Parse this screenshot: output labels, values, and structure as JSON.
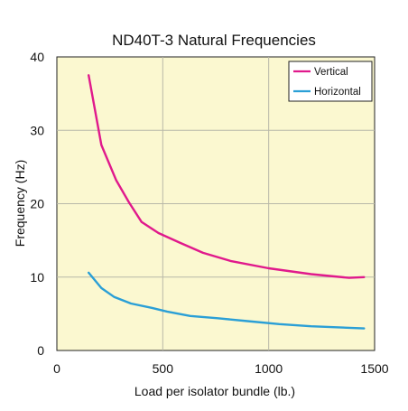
{
  "chart_data": {
    "type": "line",
    "title": "ND40T-3 Natural Frequencies",
    "xlabel": "Load per isolator bundle (lb.)",
    "ylabel": "Frequency (Hz)",
    "xlim": [
      0,
      1500
    ],
    "ylim": [
      0,
      40
    ],
    "xticks": [
      0,
      500,
      1000,
      1500
    ],
    "yticks": [
      0,
      10,
      20,
      30,
      40
    ],
    "grid": true,
    "legend_position": "top-right",
    "colors": {
      "plot_background": "#fbf8d0",
      "grid": "#b8b8a8",
      "Vertical": "#e0198c",
      "Horizontal": "#2a9fd6"
    },
    "series": [
      {
        "name": "Vertical",
        "x": [
          150,
          210,
          280,
          340,
          400,
          480,
          580,
          690,
          820,
          1000,
          1200,
          1380,
          1450
        ],
        "y": [
          37.5,
          28.0,
          23.2,
          20.2,
          17.5,
          16.0,
          14.7,
          13.3,
          12.2,
          11.2,
          10.4,
          9.9,
          10.0
        ]
      },
      {
        "name": "Horizontal",
        "x": [
          150,
          210,
          270,
          350,
          450,
          520,
          630,
          760,
          900,
          1050,
          1200,
          1450
        ],
        "y": [
          10.6,
          8.5,
          7.3,
          6.4,
          5.8,
          5.3,
          4.7,
          4.4,
          4.0,
          3.6,
          3.3,
          3.0
        ]
      }
    ]
  }
}
